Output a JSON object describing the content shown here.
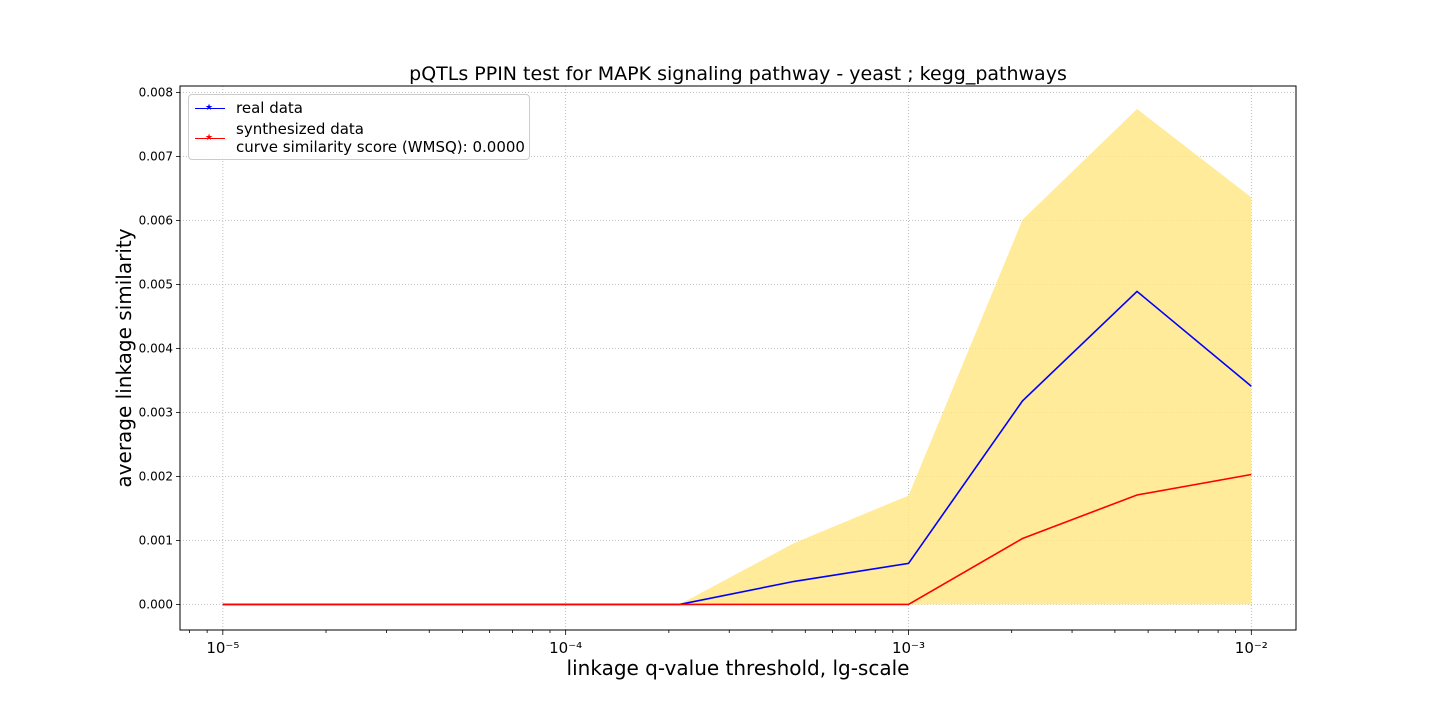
{
  "chart_data": {
    "type": "line",
    "title": "pQTLs PPIN test for MAPK signaling pathway - yeast ; kegg_pathways",
    "xlabel": "linkage q-value threshold, lg-scale",
    "ylabel": "average linkage similarity",
    "x_scale": "log",
    "x": [
      1e-05,
      2.15e-05,
      4.64e-05,
      0.0001,
      0.000215,
      0.000464,
      0.001,
      0.00215,
      0.00464,
      0.01
    ],
    "xlim": [
      7.5e-06,
      0.0135
    ],
    "ylim": [
      -0.0004,
      0.0081
    ],
    "x_ticks": [
      {
        "value": 1e-05,
        "label": "10⁻⁵"
      },
      {
        "value": 0.0001,
        "label": "10⁻⁴"
      },
      {
        "value": 0.001,
        "label": "10⁻³"
      },
      {
        "value": 0.01,
        "label": "10⁻²"
      }
    ],
    "y_ticks": [
      {
        "value": 0.0,
        "label": "0.000"
      },
      {
        "value": 0.001,
        "label": "0.001"
      },
      {
        "value": 0.002,
        "label": "0.002"
      },
      {
        "value": 0.003,
        "label": "0.003"
      },
      {
        "value": 0.004,
        "label": "0.004"
      },
      {
        "value": 0.005,
        "label": "0.005"
      },
      {
        "value": 0.006,
        "label": "0.006"
      },
      {
        "value": 0.007,
        "label": "0.007"
      },
      {
        "value": 0.008,
        "label": "0.008"
      }
    ],
    "grid": true,
    "legend_position": "top-left",
    "series": [
      {
        "name": "real data",
        "color": "#0000ff",
        "marker": "star",
        "values": [
          0,
          0,
          0,
          0,
          0,
          0.00036,
          0.00064,
          0.00318,
          0.00489,
          0.00341
        ]
      },
      {
        "name": "synthesized data",
        "color": "#ff0000",
        "marker": "star",
        "values": [
          0,
          0,
          0,
          0,
          0,
          0,
          0,
          0.00103,
          0.00171,
          0.00203
        ]
      }
    ],
    "band": {
      "color": "#ffe680",
      "lower": [
        0,
        0,
        0,
        0,
        0,
        0,
        0,
        0,
        0,
        0
      ],
      "upper": [
        0,
        0,
        0,
        0,
        0,
        0.00096,
        0.0017,
        0.00601,
        0.00774,
        0.00636
      ]
    },
    "legend_note": "curve similarity score (WMSQ): 0.0000"
  }
}
